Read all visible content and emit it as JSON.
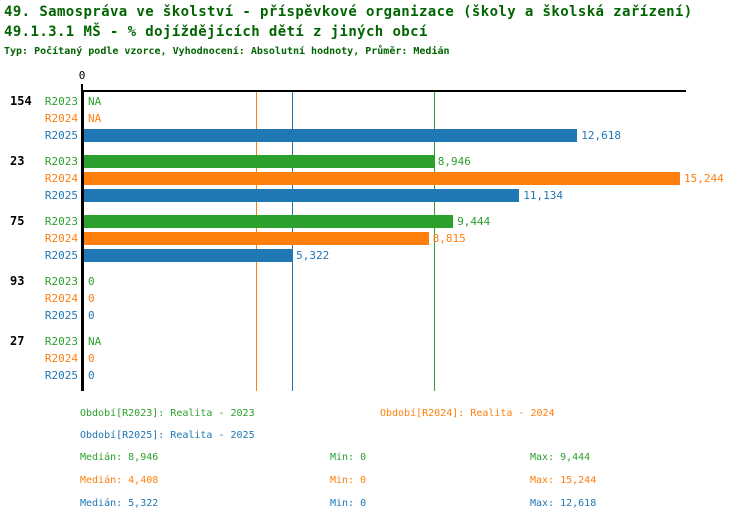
{
  "header": {
    "title": "49. Samospráva ve školství - příspěvkové organizace (školy a školská zařízení)",
    "subtitle": "49.1.3.1 MŠ - % dojíždějících dětí z jiných obcí",
    "meta": "Typ: Počítaný podle vzorce, Vyhodnocení: Absolutní hodnoty, Průměr: Medián"
  },
  "colors": {
    "title_green": "#006400",
    "series_r2023": "#2ca02c",
    "series_r2024": "#ff7f0e",
    "series_r2025": "#1f77b4",
    "axis_black": "#000000"
  },
  "axis": {
    "zero_label": "0"
  },
  "chart_data": {
    "type": "bar",
    "orientation": "horizontal",
    "xlim": [
      0,
      15244
    ],
    "series_years": [
      "R2023",
      "R2024",
      "R2025"
    ],
    "groups": [
      {
        "id": "154",
        "rows": [
          {
            "year": "R2023",
            "value": null,
            "display": "NA"
          },
          {
            "year": "R2024",
            "value": null,
            "display": "NA"
          },
          {
            "year": "R2025",
            "value": 12618,
            "display": "12,618"
          }
        ]
      },
      {
        "id": "23",
        "rows": [
          {
            "year": "R2023",
            "value": 8946,
            "display": "8,946"
          },
          {
            "year": "R2024",
            "value": 15244,
            "display": "15,244"
          },
          {
            "year": "R2025",
            "value": 11134,
            "display": "11,134"
          }
        ]
      },
      {
        "id": "75",
        "rows": [
          {
            "year": "R2023",
            "value": 9444,
            "display": "9,444"
          },
          {
            "year": "R2024",
            "value": 8815,
            "display": "8,815"
          },
          {
            "year": "R2025",
            "value": 5322,
            "display": "5,322"
          }
        ]
      },
      {
        "id": "93",
        "rows": [
          {
            "year": "R2023",
            "value": 0,
            "display": "0"
          },
          {
            "year": "R2024",
            "value": 0,
            "display": "0"
          },
          {
            "year": "R2025",
            "value": 0,
            "display": "0"
          }
        ]
      },
      {
        "id": "27",
        "rows": [
          {
            "year": "R2023",
            "value": null,
            "display": "NA"
          },
          {
            "year": "R2024",
            "value": 0,
            "display": "0"
          },
          {
            "year": "R2025",
            "value": 0,
            "display": "0"
          }
        ]
      }
    ],
    "median_lines": [
      {
        "series": "R2023",
        "value": 8946
      },
      {
        "series": "R2024",
        "value": 4408
      },
      {
        "series": "R2025",
        "value": 5322
      }
    ]
  },
  "legend": {
    "r2023": "Období[R2023]: Realita - 2023",
    "r2024": "Období[R2024]: Realita - 2024",
    "r2025": "Období[R2025]: Realita - 2025"
  },
  "stats": [
    {
      "median": "Medián: 8,946",
      "min": "Min: 0",
      "max": "Max: 9,444"
    },
    {
      "median": "Medián: 4,408",
      "min": "Min: 0",
      "max": "Max: 15,244"
    },
    {
      "median": "Medián: 5,322",
      "min": "Min: 0",
      "max": "Max: 12,618"
    }
  ]
}
